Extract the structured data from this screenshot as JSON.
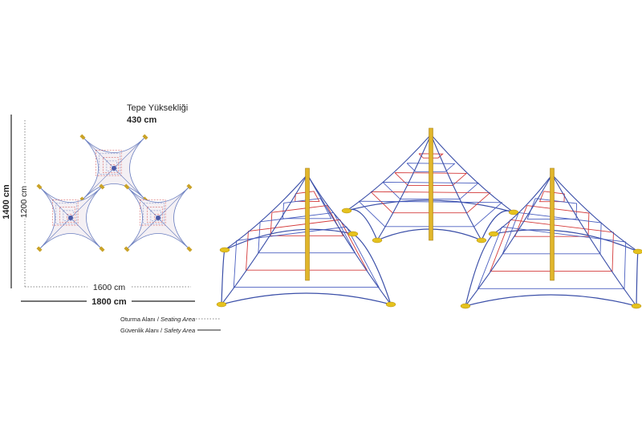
{
  "height_label": {
    "title": "Tepe Yüksekliği",
    "value": "430 cm"
  },
  "dimensions": {
    "outer_height": "1400 cm",
    "inner_height": "1200 cm",
    "inner_width": "1600 cm",
    "outer_width": "1800 cm"
  },
  "legend": [
    {
      "label": "Oturma Alanı /",
      "label_en": "Seating Area"
    },
    {
      "label": "Güvenlik Alanı /",
      "label_en": "Safety Area"
    }
  ]
}
